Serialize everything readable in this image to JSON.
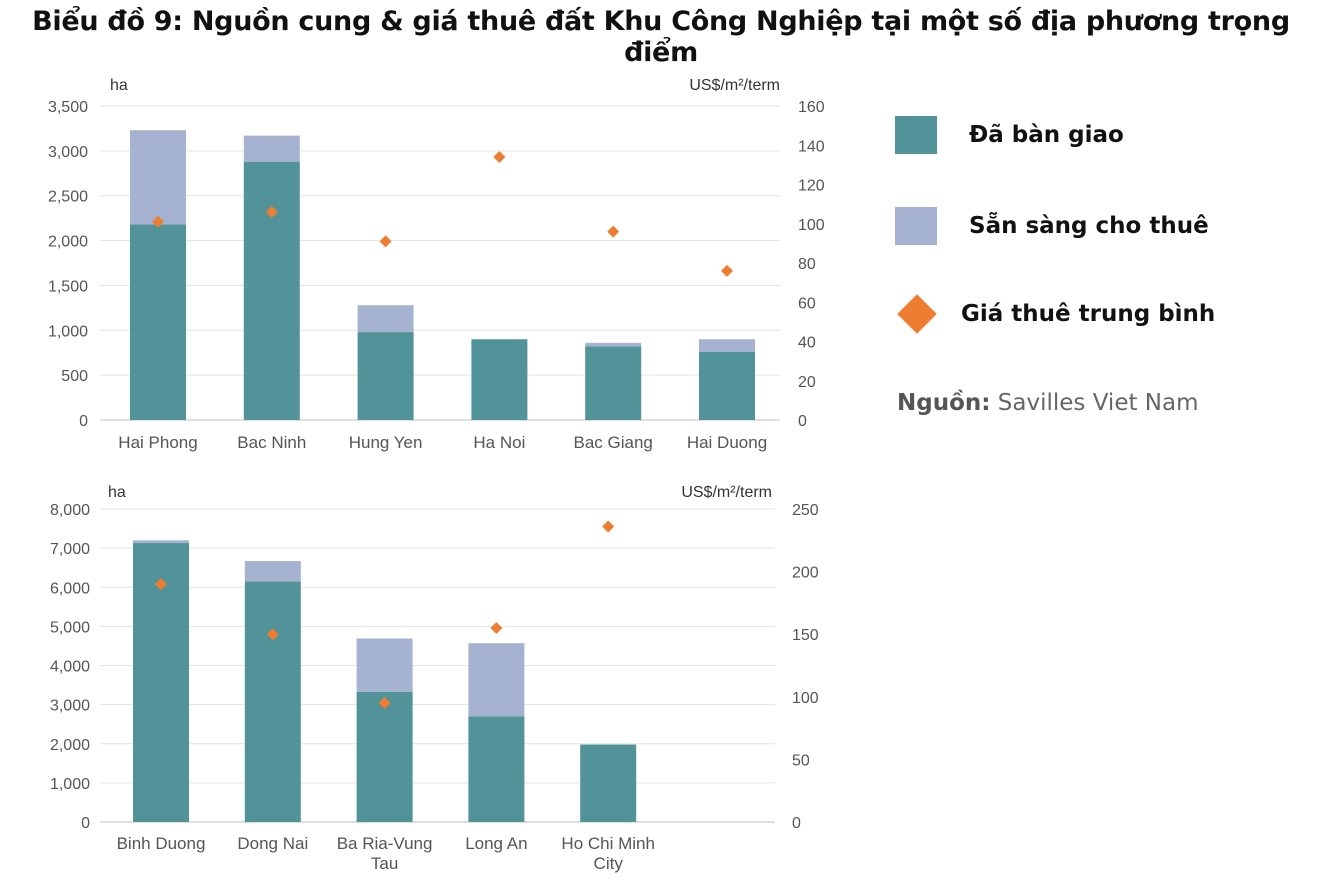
{
  "title": "Biểu đồ 9: Nguồn cung & giá thuê đất Khu Công Nghiệp tại một số địa phương trọng điểm",
  "colors": {
    "delivered": "#519398",
    "available": "#a5b3d0",
    "price": "#ee7d31"
  },
  "legend": {
    "delivered": "Đã bàn giao",
    "available": "Sẵn sàng cho thuê",
    "price": "Giá thuê trung bình"
  },
  "source": {
    "label": "Nguồn:",
    "text": "Savilles Viet Nam"
  },
  "chart_data": [
    {
      "type": "bar",
      "stacked": true,
      "ylabel": "ha",
      "y2label": "US$/m²/term",
      "ylim": [
        0,
        3500
      ],
      "y_ticks": [
        "0",
        "500",
        "1,000",
        "1,500",
        "2,000",
        "2,500",
        "3,000",
        "3,500"
      ],
      "y2lim": [
        0,
        160
      ],
      "y2_ticks": [
        "0",
        "20",
        "40",
        "60",
        "80",
        "100",
        "120",
        "140",
        "160"
      ],
      "grid": true,
      "categories": [
        "Hai Phong",
        "Bac Ninh",
        "Hung Yen",
        "Ha Noi",
        "Bac Giang",
        "Hai Duong"
      ],
      "series": [
        {
          "name": "Đã bàn giao",
          "values": [
            2180,
            2880,
            980,
            900,
            820,
            760
          ]
        },
        {
          "name": "Sẵn sàng cho thuê",
          "values": [
            1050,
            290,
            300,
            0,
            40,
            140
          ]
        },
        {
          "name": "Giá thuê trung bình",
          "axis": "right",
          "type": "scatter",
          "values": [
            101,
            106,
            91,
            134,
            96,
            76
          ]
        }
      ]
    },
    {
      "type": "bar",
      "stacked": true,
      "ylabel": "ha",
      "y2label": "US$/m²/term",
      "ylim": [
        0,
        8000
      ],
      "y_ticks": [
        "0",
        "1,000",
        "2,000",
        "3,000",
        "4,000",
        "5,000",
        "6,000",
        "7,000",
        "8,000"
      ],
      "y2lim": [
        0,
        250
      ],
      "y2_ticks": [
        "0",
        "50",
        "100",
        "150",
        "200",
        "250"
      ],
      "grid": true,
      "categories": [
        [
          "Binh Duong"
        ],
        [
          "Dong Nai"
        ],
        [
          "Ba Ria-Vung",
          "Tau"
        ],
        [
          "Long An"
        ],
        [
          "Ho Chi Minh",
          "City"
        ]
      ],
      "series": [
        {
          "name": "Đã bàn giao",
          "values": [
            7130,
            6150,
            3330,
            2700,
            1980
          ]
        },
        {
          "name": "Sẵn sàng cho thuê",
          "values": [
            70,
            520,
            1360,
            1870,
            0
          ]
        },
        {
          "name": "Giá thuê trung bình",
          "axis": "right",
          "type": "scatter",
          "values": [
            190,
            150,
            95,
            155,
            236
          ]
        }
      ]
    }
  ]
}
